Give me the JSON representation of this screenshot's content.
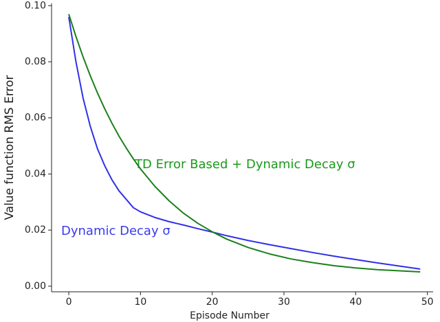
{
  "chart_data": {
    "type": "line",
    "x_label": "Episode Number",
    "y_label": "Value function RMS Error",
    "x": [
      0,
      1,
      2,
      3,
      4,
      5,
      6,
      7,
      8,
      9,
      10,
      12,
      14,
      16,
      18,
      20,
      22,
      25,
      28,
      31,
      34,
      37,
      40,
      43,
      46,
      49
    ],
    "series": [
      {
        "name": "Dynamic Decay σ",
        "color": "#2f2fe8",
        "values": [
          0.096,
          0.08,
          0.067,
          0.057,
          0.049,
          0.043,
          0.038,
          0.034,
          0.031,
          0.028,
          0.0265,
          0.0245,
          0.023,
          0.0218,
          0.0205,
          0.0193,
          0.018,
          0.0163,
          0.0148,
          0.0134,
          0.012,
          0.0107,
          0.0095,
          0.0083,
          0.0072,
          0.0061
        ]
      },
      {
        "name": "TD Error Based + Dynamic Decay σ",
        "color": "#1a7f1a",
        "values": [
          0.097,
          0.089,
          0.0817,
          0.075,
          0.0689,
          0.0633,
          0.0582,
          0.0535,
          0.0493,
          0.0454,
          0.0418,
          0.0356,
          0.0304,
          0.026,
          0.0224,
          0.0194,
          0.0168,
          0.0138,
          0.0115,
          0.0097,
          0.0084,
          0.0073,
          0.0065,
          0.0059,
          0.0055,
          0.0051
        ]
      }
    ],
    "xlim": [
      -2.4,
      50.8
    ],
    "ylim": [
      -0.002,
      0.1008
    ],
    "xticks": [
      0,
      10,
      20,
      30,
      40,
      50
    ],
    "yticks": [
      {
        "value": 0,
        "label": "0.00"
      },
      {
        "value": 0.02,
        "label": "0.02"
      },
      {
        "value": 0.04,
        "label": "0.04"
      },
      {
        "value": 0.06,
        "label": "0.06"
      },
      {
        "value": 0.08,
        "label": "0.08"
      },
      {
        "value": 0.1,
        "label": "0.10"
      }
    ]
  }
}
